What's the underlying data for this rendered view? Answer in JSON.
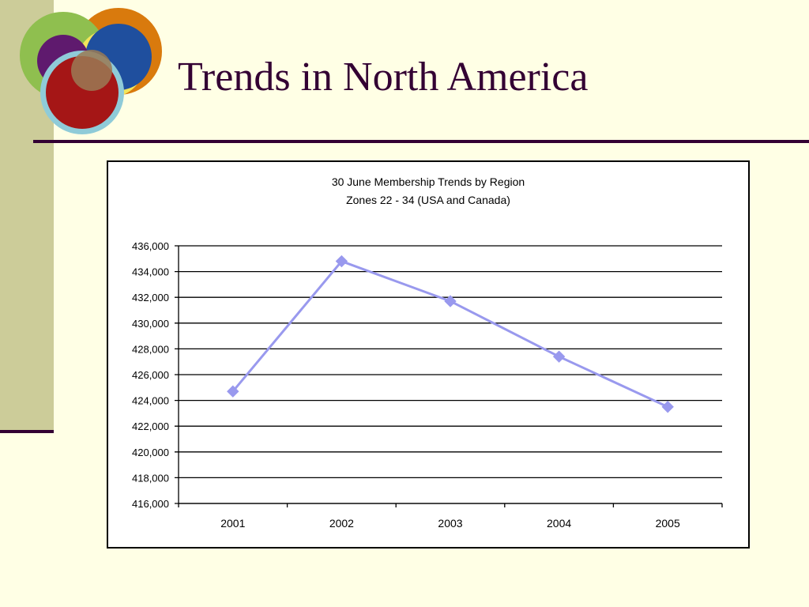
{
  "slide": {
    "title": "Trends in North America"
  },
  "colors": {
    "background": "#ffffe5",
    "side_band": "#cccc99",
    "rule": "#330033",
    "series_line": "#9999ee"
  },
  "logo": {
    "icon": "overlapping-circles-logo"
  },
  "chart_data": {
    "type": "line",
    "title": "30 June Membership Trends by Region",
    "subtitle": "Zones 22 - 34 (USA and Canada)",
    "categories": [
      "2001",
      "2002",
      "2003",
      "2004",
      "2005"
    ],
    "series": [
      {
        "values": [
          424700,
          434800,
          431700,
          427400,
          423500
        ]
      }
    ],
    "ylim": [
      416000,
      436000
    ],
    "ytick_step": 2000,
    "ytick_labels": [
      "416,000",
      "418,000",
      "420,000",
      "422,000",
      "424,000",
      "426,000",
      "428,000",
      "430,000",
      "432,000",
      "434,000",
      "436,000"
    ],
    "xlabel": "",
    "ylabel": "",
    "grid": true,
    "legend": "none",
    "marker": "diamond"
  }
}
